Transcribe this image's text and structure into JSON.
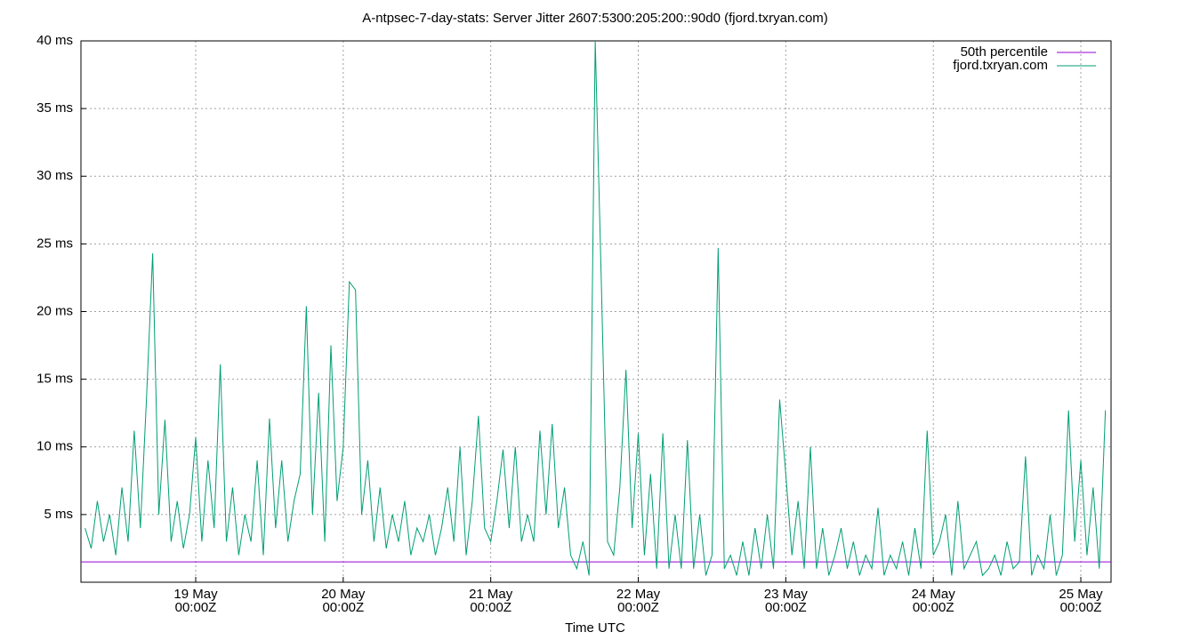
{
  "chart_data": {
    "type": "line",
    "title": "A-ntpsec-7-day-stats: Server Jitter 2607:5300:205:200::90d0 (fjord.txryan.com)",
    "x_label": "Time UTC",
    "xlim": [
      "18 May 05:20Z",
      "25 May 04:55Z"
    ],
    "xticks": [
      "19 May 00:00Z",
      "20 May 00:00Z",
      "21 May 00:00Z",
      "22 May 00:00Z",
      "23 May 00:00Z",
      "24 May 00:00Z",
      "25 May 00:00Z"
    ],
    "ylim": [
      0,
      40
    ],
    "yticks": [
      {
        "value": 5,
        "label": "5 ms"
      },
      {
        "value": 10,
        "label": "10 ms"
      },
      {
        "value": 15,
        "label": "15 ms"
      },
      {
        "value": 20,
        "label": "20 ms"
      },
      {
        "value": 25,
        "label": "25 ms"
      },
      {
        "value": 30,
        "label": "30 ms"
      },
      {
        "value": 35,
        "label": "35 ms"
      },
      {
        "value": 40,
        "label": "40 ms"
      }
    ],
    "grid": true,
    "legend": "top-right",
    "series": [
      {
        "name": "50th percentile",
        "color": "#9400d3",
        "x": [
          "18 May 05:20Z",
          "25 May 04:55Z"
        ],
        "values": [
          1.5,
          1.5
        ]
      },
      {
        "name": "fjord.txryan.com",
        "color": "#009e73",
        "x": [
          "18 May 06:00Z",
          "18 May 07:00Z",
          "18 May 08:00Z",
          "18 May 09:00Z",
          "18 May 10:00Z",
          "18 May 11:00Z",
          "18 May 12:00Z",
          "18 May 13:00Z",
          "18 May 14:00Z",
          "18 May 15:00Z",
          "18 May 16:00Z",
          "18 May 17:00Z",
          "18 May 18:00Z",
          "18 May 19:00Z",
          "18 May 20:00Z",
          "18 May 21:00Z",
          "18 May 22:00Z",
          "18 May 23:00Z",
          "19 May 00:00Z",
          "19 May 01:00Z",
          "19 May 02:00Z",
          "19 May 03:00Z",
          "19 May 04:00Z",
          "19 May 05:00Z",
          "19 May 06:00Z",
          "19 May 07:00Z",
          "19 May 08:00Z",
          "19 May 09:00Z",
          "19 May 10:00Z",
          "19 May 11:00Z",
          "19 May 12:00Z",
          "19 May 13:00Z",
          "19 May 14:00Z",
          "19 May 15:00Z",
          "19 May 16:00Z",
          "19 May 17:00Z",
          "19 May 18:00Z",
          "19 May 19:00Z",
          "19 May 20:00Z",
          "19 May 21:00Z",
          "19 May 22:00Z",
          "19 May 23:00Z",
          "20 May 00:00Z",
          "20 May 01:00Z",
          "20 May 02:00Z",
          "20 May 03:00Z",
          "20 May 04:00Z",
          "20 May 05:00Z",
          "20 May 06:00Z",
          "20 May 07:00Z",
          "20 May 08:00Z",
          "20 May 09:00Z",
          "20 May 10:00Z",
          "20 May 11:00Z",
          "20 May 12:00Z",
          "20 May 13:00Z",
          "20 May 14:00Z",
          "20 May 15:00Z",
          "20 May 16:00Z",
          "20 May 17:00Z",
          "20 May 18:00Z",
          "20 May 19:00Z",
          "20 May 20:00Z",
          "20 May 21:00Z",
          "20 May 22:00Z",
          "20 May 23:00Z",
          "21 May 00:00Z",
          "21 May 01:00Z",
          "21 May 02:00Z",
          "21 May 03:00Z",
          "21 May 04:00Z",
          "21 May 05:00Z",
          "21 May 06:00Z",
          "21 May 07:00Z",
          "21 May 08:00Z",
          "21 May 09:00Z",
          "21 May 10:00Z",
          "21 May 11:00Z",
          "21 May 12:00Z",
          "21 May 13:00Z",
          "21 May 14:00Z",
          "21 May 15:00Z",
          "21 May 16:00Z",
          "21 May 17:00Z",
          "21 May 18:00Z",
          "21 May 19:00Z",
          "21 May 20:00Z",
          "21 May 21:00Z",
          "21 May 22:00Z",
          "21 May 23:00Z",
          "22 May 00:00Z",
          "22 May 01:00Z",
          "22 May 02:00Z",
          "22 May 03:00Z",
          "22 May 04:00Z",
          "22 May 05:00Z",
          "22 May 06:00Z",
          "22 May 07:00Z",
          "22 May 08:00Z",
          "22 May 09:00Z",
          "22 May 10:00Z",
          "22 May 11:00Z",
          "22 May 12:00Z",
          "22 May 13:00Z",
          "22 May 14:00Z",
          "22 May 15:00Z",
          "22 May 16:00Z",
          "22 May 17:00Z",
          "22 May 18:00Z",
          "22 May 19:00Z",
          "22 May 20:00Z",
          "22 May 21:00Z",
          "22 May 22:00Z",
          "22 May 23:00Z",
          "23 May 00:00Z",
          "23 May 01:00Z",
          "23 May 02:00Z",
          "23 May 03:00Z",
          "23 May 04:00Z",
          "23 May 05:00Z",
          "23 May 06:00Z",
          "23 May 07:00Z",
          "23 May 08:00Z",
          "23 May 09:00Z",
          "23 May 10:00Z",
          "23 May 11:00Z",
          "23 May 12:00Z",
          "23 May 13:00Z",
          "23 May 14:00Z",
          "23 May 15:00Z",
          "23 May 16:00Z",
          "23 May 17:00Z",
          "23 May 18:00Z",
          "23 May 19:00Z",
          "23 May 20:00Z",
          "23 May 21:00Z",
          "23 May 22:00Z",
          "23 May 23:00Z",
          "24 May 00:00Z",
          "24 May 01:00Z",
          "24 May 02:00Z",
          "24 May 03:00Z",
          "24 May 04:00Z",
          "24 May 05:00Z",
          "24 May 06:00Z",
          "24 May 07:00Z",
          "24 May 08:00Z",
          "24 May 09:00Z",
          "24 May 10:00Z",
          "24 May 11:00Z",
          "24 May 12:00Z",
          "24 May 13:00Z",
          "24 May 14:00Z",
          "24 May 15:00Z",
          "24 May 16:00Z",
          "24 May 17:00Z",
          "24 May 18:00Z",
          "24 May 19:00Z",
          "24 May 20:00Z",
          "24 May 21:00Z",
          "24 May 22:00Z",
          "24 May 23:00Z",
          "25 May 00:00Z",
          "25 May 01:00Z",
          "25 May 02:00Z",
          "25 May 03:00Z",
          "25 May 04:00Z"
        ],
        "values": [
          4,
          2.5,
          6,
          3,
          5,
          2,
          7,
          3,
          11.2,
          4,
          13.6,
          24.3,
          5,
          12,
          3,
          6,
          2.5,
          5,
          10.7,
          3,
          9,
          4,
          16.1,
          3,
          7,
          2,
          5,
          3,
          9,
          2,
          12.1,
          4,
          9,
          3,
          6,
          8,
          20.4,
          5,
          14,
          3,
          17.5,
          6,
          10,
          22.2,
          21.6,
          5,
          9,
          3,
          7,
          2.5,
          5,
          3,
          6,
          2,
          4,
          3,
          5,
          2,
          4,
          7,
          3,
          10,
          2,
          6,
          12.3,
          4,
          3,
          6,
          9.8,
          4,
          10,
          3,
          5,
          3,
          11.2,
          5,
          11.7,
          4,
          7,
          2,
          1,
          3,
          0.5,
          40,
          22,
          3,
          2,
          7,
          15.7,
          4,
          11,
          2,
          8,
          1,
          11,
          1,
          5,
          1,
          10.5,
          1,
          5,
          0.5,
          2,
          24.7,
          1,
          2,
          0.5,
          3,
          0.5,
          4,
          1,
          5,
          1,
          13.5,
          8,
          2,
          6,
          1,
          10,
          1,
          4,
          0.5,
          2,
          4,
          1,
          3,
          0.5,
          2,
          1,
          5.5,
          0.5,
          2,
          1,
          3,
          0.5,
          4,
          1,
          11.2,
          2,
          3,
          5,
          0.5,
          6,
          1,
          2,
          3,
          0.5,
          1,
          2,
          0.5,
          3,
          1,
          1.5,
          9.3,
          0.5,
          2,
          1,
          5,
          0.5,
          2,
          12.7,
          3,
          9,
          2,
          7,
          1,
          12.7
        ]
      }
    ]
  }
}
